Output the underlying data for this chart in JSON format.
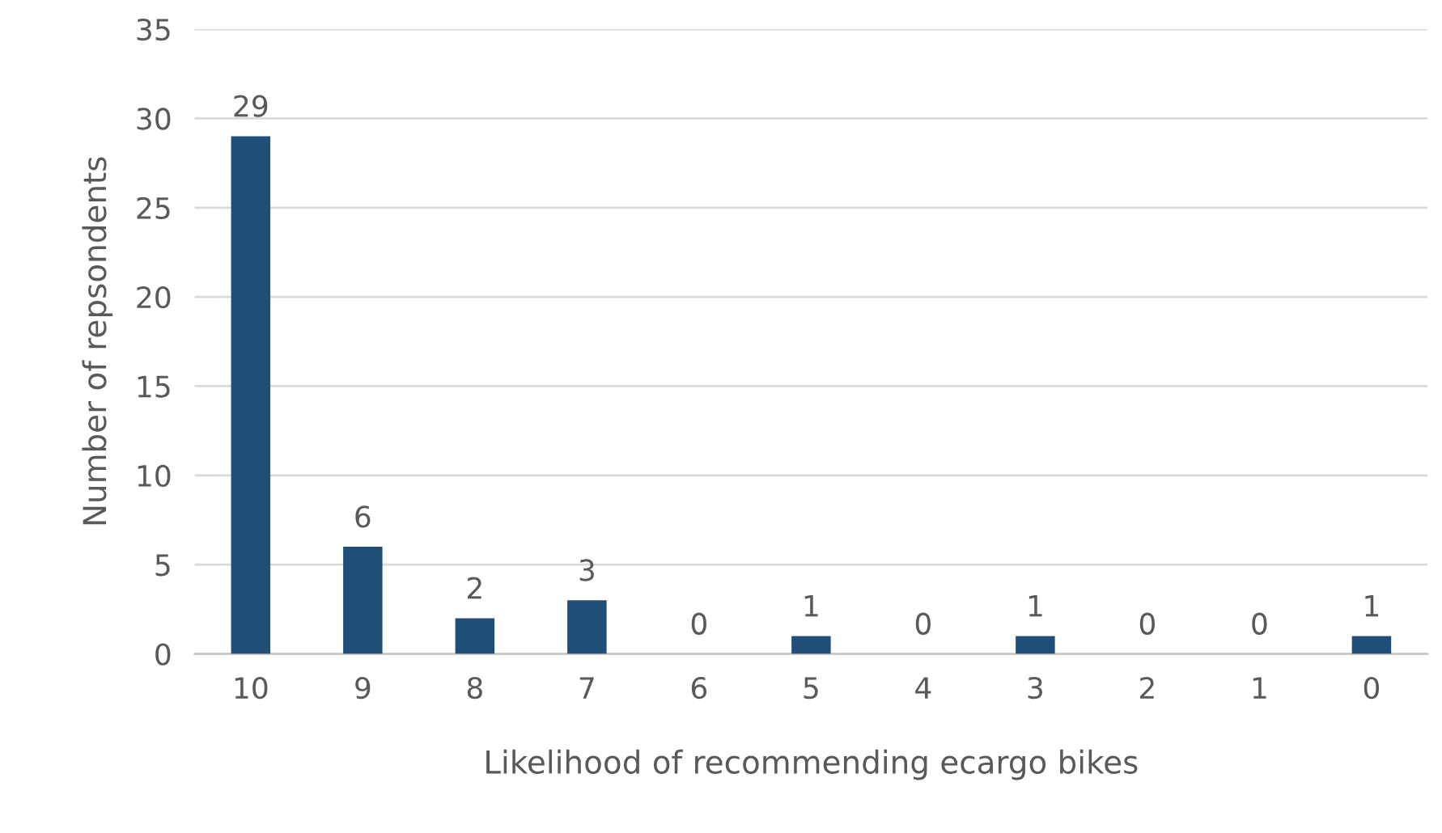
{
  "chart_data": {
    "type": "bar",
    "xlabel": "Likelihood of recommending ecargo bikes",
    "ylabel": "Number of repsondents",
    "categories": [
      "10",
      "9",
      "8",
      "7",
      "6",
      "5",
      "4",
      "3",
      "2",
      "1",
      "0"
    ],
    "values": [
      29,
      6,
      2,
      3,
      0,
      1,
      0,
      1,
      0,
      0,
      1
    ],
    "color": "#1f4e79",
    "ylim": [
      0,
      35
    ],
    "yticks": [
      0,
      5,
      10,
      15,
      20,
      25,
      30,
      35
    ],
    "grid": "y",
    "data_labels": true,
    "legend": false
  }
}
